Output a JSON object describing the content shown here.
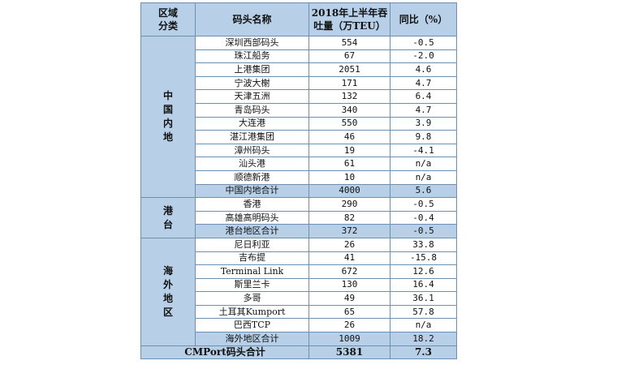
{
  "headers": {
    "region": "区域\n分类",
    "name": "码头名称",
    "volume": "2018年上半年吞\n吐量（万TEU）",
    "yoy": "同比（%）"
  },
  "groups": [
    {
      "region": "中国内地",
      "rows": [
        {
          "name": "深圳西部码头",
          "volume": "554",
          "yoy": "-0.5"
        },
        {
          "name": "珠江船务",
          "volume": "67",
          "yoy": "-2.0"
        },
        {
          "name": "上港集团",
          "volume": "2051",
          "yoy": "4.6"
        },
        {
          "name": "宁波大榭",
          "volume": "171",
          "yoy": "4.7"
        },
        {
          "name": "天津五洲",
          "volume": "132",
          "yoy": "6.4"
        },
        {
          "name": "青岛码头",
          "volume": "340",
          "yoy": "4.7"
        },
        {
          "name": "大连港",
          "volume": "550",
          "yoy": "3.9"
        },
        {
          "name": "湛江港集团",
          "volume": "46",
          "yoy": "9.8"
        },
        {
          "name": "漳州码头",
          "volume": "19",
          "yoy": "-4.1"
        },
        {
          "name": "汕头港",
          "volume": "61",
          "yoy": "n/a"
        },
        {
          "name": "顺德新港",
          "volume": "10",
          "yoy": "n/a"
        }
      ],
      "subtotal": {
        "name": "中国内地合计",
        "volume": "4000",
        "yoy": "5.6"
      }
    },
    {
      "region": "港台",
      "rows": [
        {
          "name": "香港",
          "volume": "290",
          "yoy": "-0.5"
        },
        {
          "name": "高雄高明码头",
          "volume": "82",
          "yoy": "-0.4"
        }
      ],
      "subtotal": {
        "name": "港台地区合计",
        "volume": "372",
        "yoy": "-0.5"
      }
    },
    {
      "region": "海外地区",
      "rows": [
        {
          "name": "尼日利亚",
          "volume": "26",
          "yoy": "33.8"
        },
        {
          "name": "吉布提",
          "volume": "41",
          "yoy": "-15.8"
        },
        {
          "name": "Terminal Link",
          "volume": "672",
          "yoy": "12.6"
        },
        {
          "name": "斯里兰卡",
          "volume": "130",
          "yoy": "16.4"
        },
        {
          "name": "多哥",
          "volume": "49",
          "yoy": "36.1"
        },
        {
          "name": "土耳其Kumport",
          "volume": "65",
          "yoy": "57.8"
        },
        {
          "name": "巴西TCP",
          "volume": "26",
          "yoy": "n/a"
        }
      ],
      "subtotal": {
        "name": "海外地区合计",
        "volume": "1009",
        "yoy": "18.2"
      }
    }
  ],
  "total": {
    "name": "CMPort码头合计",
    "volume": "5381",
    "yoy": "7.3"
  }
}
